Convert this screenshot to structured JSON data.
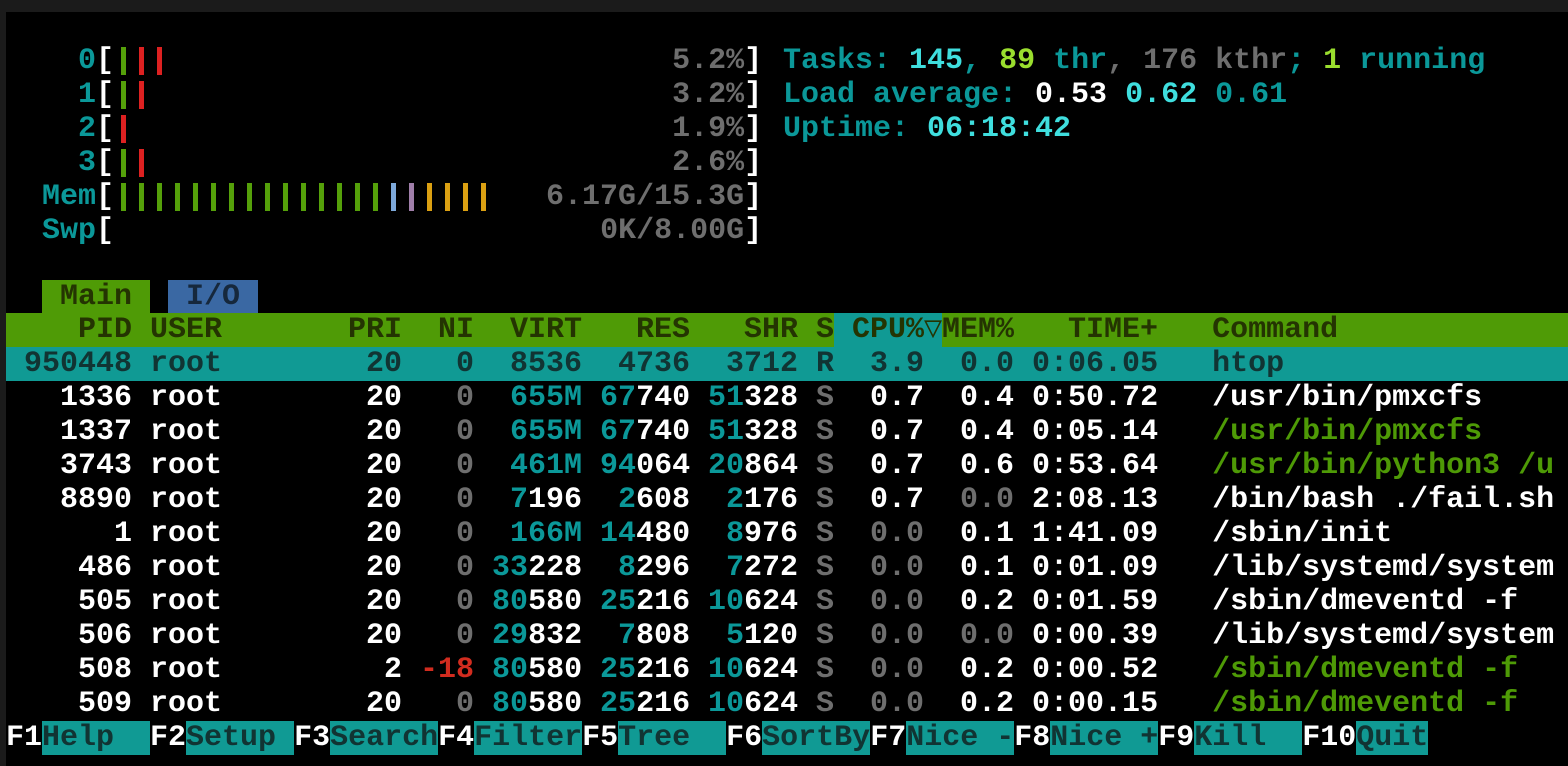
{
  "colors": {
    "background": "#000000",
    "accent_teal": "#109a94",
    "accent_green": "#4f9b06",
    "accent_blue": "#3a68a3",
    "cyan_text": "#0b9899",
    "bright_cyan": "#3fdede",
    "bright_green": "#9ade2e",
    "gray_text": "#6e6e6e",
    "red_text": "#d22c1f"
  },
  "meters": [
    {
      "label": "0",
      "value": "5.2%",
      "bars": [
        "g",
        "r",
        "r"
      ]
    },
    {
      "label": "1",
      "value": "3.2%",
      "bars": [
        "g",
        "r"
      ]
    },
    {
      "label": "2",
      "value": "1.9%",
      "bars": [
        "r"
      ]
    },
    {
      "label": "3",
      "value": "2.6%",
      "bars": [
        "g",
        "r"
      ]
    },
    {
      "label": "Mem",
      "value": "6.17G/15.3G",
      "bars": [
        "g",
        "g",
        "g",
        "g",
        "g",
        "g",
        "g",
        "g",
        "g",
        "g",
        "g",
        "g",
        "g",
        "g",
        "g",
        "bl",
        "pu",
        "y",
        "y",
        "y",
        "y"
      ]
    },
    {
      "label": "Swp",
      "value": "0K/8.00G",
      "bars": []
    }
  ],
  "sysinfo": [
    {
      "name": "tasks",
      "segments": [
        [
          "Tasks: ",
          "c"
        ],
        [
          "145",
          "bc"
        ],
        [
          ", ",
          "c"
        ],
        [
          "89",
          "bg"
        ],
        [
          " thr",
          "c"
        ],
        [
          ", ",
          "g"
        ],
        [
          "176 kthr",
          "g"
        ],
        [
          "; ",
          "c"
        ],
        [
          "1",
          "bg"
        ],
        [
          " running",
          "c"
        ]
      ]
    },
    {
      "name": "load-average",
      "segments": [
        [
          "Load average: ",
          "c"
        ],
        [
          "0.53",
          "w"
        ],
        [
          " ",
          "c"
        ],
        [
          "0.62",
          "bc"
        ],
        [
          " ",
          "c"
        ],
        [
          "0.61",
          "c"
        ]
      ]
    },
    {
      "name": "uptime",
      "segments": [
        [
          "Uptime: ",
          "c"
        ],
        [
          "06:18:42",
          "bc"
        ]
      ]
    }
  ],
  "tabs": [
    {
      "label": "Main",
      "active": true
    },
    {
      "label": "I/O",
      "active": false
    }
  ],
  "table": {
    "headers": {
      "pid": "PID",
      "user": "USER",
      "pri": "PRI",
      "ni": "NI",
      "virt": "VIRT",
      "res": "RES",
      "shr": "SHR",
      "s": "S",
      "cpu": "CPU%",
      "arrow": "▽",
      "mem": "MEM%",
      "time": "TIME+",
      "cmd": "Command"
    },
    "rows": [
      {
        "selected": true,
        "cells": {
          "pid": "950448",
          "user": "root",
          "pri": "20",
          "ni": "0",
          "virt": "8536",
          "res": "4736",
          "shr": "3712",
          "s": "R",
          "cpu": "3.9",
          "mem": "0.0",
          "time": "0:06.05",
          "cmd": "htop"
        }
      },
      {
        "cells": {
          "pid": "1336",
          "user": "root",
          "pri": "20",
          "ni": [
            [
              "0",
              "g"
            ]
          ],
          "virt": [
            [
              "655M",
              "c"
            ]
          ],
          "res": [
            [
              "67",
              "c"
            ],
            [
              "740",
              "w"
            ]
          ],
          "shr": [
            [
              "51",
              "c"
            ],
            [
              "328",
              "w"
            ]
          ],
          "s": [
            [
              "S",
              "g"
            ]
          ],
          "cpu": "0.7",
          "mem": "0.4",
          "time": "0:50.72",
          "cmd": "/usr/bin/pmxcfs"
        }
      },
      {
        "cells": {
          "pid": "1337",
          "user": "root",
          "pri": "20",
          "ni": [
            [
              "0",
              "g"
            ]
          ],
          "virt": [
            [
              "655M",
              "c"
            ]
          ],
          "res": [
            [
              "67",
              "c"
            ],
            [
              "740",
              "w"
            ]
          ],
          "shr": [
            [
              "51",
              "c"
            ],
            [
              "328",
              "w"
            ]
          ],
          "s": [
            [
              "S",
              "g"
            ]
          ],
          "cpu": "0.7",
          "mem": "0.4",
          "time": "0:05.14",
          "cmd": [
            [
              "/usr/bin/pmxcfs",
              "gr"
            ]
          ]
        }
      },
      {
        "cells": {
          "pid": "3743",
          "user": "root",
          "pri": "20",
          "ni": [
            [
              "0",
              "g"
            ]
          ],
          "virt": [
            [
              "461M",
              "c"
            ]
          ],
          "res": [
            [
              "94",
              "c"
            ],
            [
              "064",
              "w"
            ]
          ],
          "shr": [
            [
              "20",
              "c"
            ],
            [
              "864",
              "w"
            ]
          ],
          "s": [
            [
              "S",
              "g"
            ]
          ],
          "cpu": "0.7",
          "mem": "0.6",
          "time": "0:53.64",
          "cmd": [
            [
              "/usr/bin/python3 /u",
              "gr"
            ]
          ]
        }
      },
      {
        "cells": {
          "pid": "8890",
          "user": "root",
          "pri": "20",
          "ni": [
            [
              "0",
              "g"
            ]
          ],
          "virt": [
            [
              "7",
              "c"
            ],
            [
              "196",
              "w"
            ]
          ],
          "res": [
            [
              "2",
              "c"
            ],
            [
              "608",
              "w"
            ]
          ],
          "shr": [
            [
              "2",
              "c"
            ],
            [
              "176",
              "w"
            ]
          ],
          "s": [
            [
              "S",
              "g"
            ]
          ],
          "cpu": "0.7",
          "mem": [
            [
              "0.0",
              "g"
            ]
          ],
          "time": "2:08.13",
          "cmd": "/bin/bash ./fail.sh"
        }
      },
      {
        "cells": {
          "pid": "1",
          "user": "root",
          "pri": "20",
          "ni": [
            [
              "0",
              "g"
            ]
          ],
          "virt": [
            [
              "166M",
              "c"
            ]
          ],
          "res": [
            [
              "14",
              "c"
            ],
            [
              "480",
              "w"
            ]
          ],
          "shr": [
            [
              "8",
              "c"
            ],
            [
              "976",
              "w"
            ]
          ],
          "s": [
            [
              "S",
              "g"
            ]
          ],
          "cpu": [
            [
              "0.0",
              "g"
            ]
          ],
          "mem": "0.1",
          "time": "1:41.09",
          "cmd": "/sbin/init"
        }
      },
      {
        "cells": {
          "pid": "486",
          "user": "root",
          "pri": "20",
          "ni": [
            [
              "0",
              "g"
            ]
          ],
          "virt": [
            [
              "33",
              "c"
            ],
            [
              "228",
              "w"
            ]
          ],
          "res": [
            [
              "8",
              "c"
            ],
            [
              "296",
              "w"
            ]
          ],
          "shr": [
            [
              "7",
              "c"
            ],
            [
              "272",
              "w"
            ]
          ],
          "s": [
            [
              "S",
              "g"
            ]
          ],
          "cpu": [
            [
              "0.0",
              "g"
            ]
          ],
          "mem": "0.1",
          "time": "0:01.09",
          "cmd": "/lib/systemd/system"
        }
      },
      {
        "cells": {
          "pid": "505",
          "user": "root",
          "pri": "20",
          "ni": [
            [
              "0",
              "g"
            ]
          ],
          "virt": [
            [
              "80",
              "c"
            ],
            [
              "580",
              "w"
            ]
          ],
          "res": [
            [
              "25",
              "c"
            ],
            [
              "216",
              "w"
            ]
          ],
          "shr": [
            [
              "10",
              "c"
            ],
            [
              "624",
              "w"
            ]
          ],
          "s": [
            [
              "S",
              "g"
            ]
          ],
          "cpu": [
            [
              "0.0",
              "g"
            ]
          ],
          "mem": "0.2",
          "time": "0:01.59",
          "cmd": "/sbin/dmeventd -f"
        }
      },
      {
        "cells": {
          "pid": "506",
          "user": "root",
          "pri": "20",
          "ni": [
            [
              "0",
              "g"
            ]
          ],
          "virt": [
            [
              "29",
              "c"
            ],
            [
              "832",
              "w"
            ]
          ],
          "res": [
            [
              "7",
              "c"
            ],
            [
              "808",
              "w"
            ]
          ],
          "shr": [
            [
              "5",
              "c"
            ],
            [
              "120",
              "w"
            ]
          ],
          "s": [
            [
              "S",
              "g"
            ]
          ],
          "cpu": [
            [
              "0.0",
              "g"
            ]
          ],
          "mem": [
            [
              "0.0",
              "g"
            ]
          ],
          "time": "0:00.39",
          "cmd": "/lib/systemd/system"
        }
      },
      {
        "cells": {
          "pid": "508",
          "user": "root",
          "pri": "2",
          "ni": [
            [
              "-18",
              "r"
            ]
          ],
          "virt": [
            [
              "80",
              "c"
            ],
            [
              "580",
              "w"
            ]
          ],
          "res": [
            [
              "25",
              "c"
            ],
            [
              "216",
              "w"
            ]
          ],
          "shr": [
            [
              "10",
              "c"
            ],
            [
              "624",
              "w"
            ]
          ],
          "s": [
            [
              "S",
              "g"
            ]
          ],
          "cpu": [
            [
              "0.0",
              "g"
            ]
          ],
          "mem": "0.2",
          "time": "0:00.52",
          "cmd": [
            [
              "/sbin/dmeventd -f",
              "gr"
            ]
          ]
        }
      },
      {
        "cells": {
          "pid": "509",
          "user": "root",
          "pri": "20",
          "ni": [
            [
              "0",
              "g"
            ]
          ],
          "virt": [
            [
              "80",
              "c"
            ],
            [
              "580",
              "w"
            ]
          ],
          "res": [
            [
              "25",
              "c"
            ],
            [
              "216",
              "w"
            ]
          ],
          "shr": [
            [
              "10",
              "c"
            ],
            [
              "624",
              "w"
            ]
          ],
          "s": [
            [
              "S",
              "g"
            ]
          ],
          "cpu": [
            [
              "0.0",
              "g"
            ]
          ],
          "mem": "0.2",
          "time": "0:00.15",
          "cmd": [
            [
              "/sbin/dmeventd -f",
              "gr"
            ]
          ]
        }
      }
    ]
  },
  "fnbar": [
    {
      "key": "F1",
      "label": "Help"
    },
    {
      "key": "F2",
      "label": "Setup"
    },
    {
      "key": "F3",
      "label": "Search"
    },
    {
      "key": "F4",
      "label": "Filter"
    },
    {
      "key": "F5",
      "label": "Tree"
    },
    {
      "key": "F6",
      "label": "SortBy"
    },
    {
      "key": "F7",
      "label": "Nice -"
    },
    {
      "key": "F8",
      "label": "Nice +"
    },
    {
      "key": "F9",
      "label": "Kill"
    },
    {
      "key": "F10",
      "label": "Quit"
    }
  ]
}
